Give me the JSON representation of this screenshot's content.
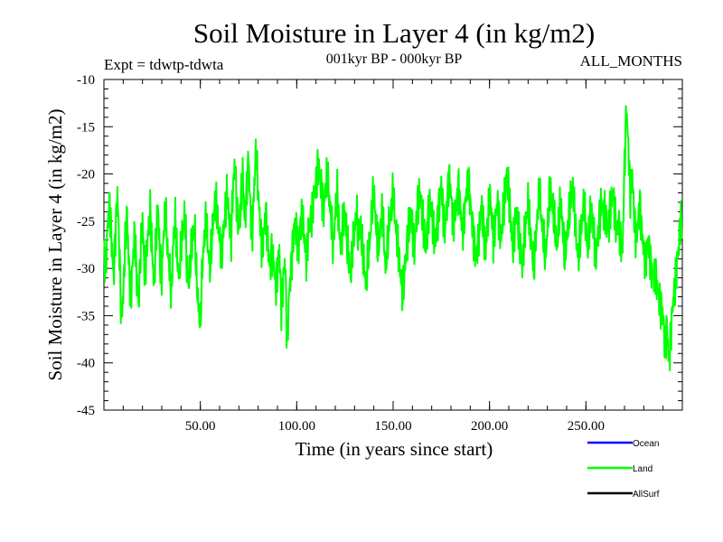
{
  "chart_data": {
    "type": "line",
    "title": "Soil Moisture in Layer 4 (in kg/m2)",
    "subtitle_left": "Expt = tdwtp-tdwta",
    "subtitle_center": "001kyr BP - 000kyr BP",
    "subtitle_right": "ALL_MONTHS",
    "xlabel": "Time (in years since start)",
    "ylabel": "Soil Moisture in Layer 4 (in kg/m2)",
    "xlim": [
      0,
      300
    ],
    "ylim": [
      -45,
      -10
    ],
    "x_ticks": [
      50,
      100,
      150,
      200,
      250
    ],
    "x_tick_labels": [
      "50.00",
      "100.00",
      "150.00",
      "200.00",
      "250.00"
    ],
    "y_ticks": [
      -10,
      -15,
      -20,
      -25,
      -30,
      -35,
      -40,
      -45
    ],
    "y_tick_labels": [
      "-10",
      "-15",
      "-20",
      "-25",
      "-30",
      "-35",
      "-40",
      "-45"
    ],
    "legend": {
      "position": "bottom-right"
    },
    "colors": {
      "Ocean": "#0000ff",
      "Land": "#00ff00",
      "AllSurf": "#000000"
    },
    "series": [
      {
        "name": "Ocean",
        "values": []
      },
      {
        "name": "Land",
        "x_start": 0,
        "x_step": 1,
        "values": [
          -28,
          -29.5,
          -25,
          -23,
          -27,
          -31,
          -26,
          -22,
          -28,
          -35,
          -33,
          -27,
          -24,
          -30,
          -33,
          -29,
          -26,
          -31,
          -34,
          -28,
          -25,
          -30,
          -29,
          -26,
          -24,
          -28,
          -32,
          -27,
          -23,
          -29,
          -31,
          -26,
          -24,
          -28,
          -30,
          -33,
          -27,
          -25,
          -29,
          -31,
          -28,
          -26,
          -24,
          -30,
          -32,
          -29,
          -27,
          -25,
          -31,
          -34,
          -36,
          -30,
          -27,
          -25,
          -28,
          -30,
          -27,
          -24,
          -23,
          -25,
          -27,
          -29,
          -26,
          -24,
          -22,
          -25,
          -27,
          -21,
          -19,
          -24,
          -26,
          -23,
          -20,
          -25,
          -22,
          -18,
          -24,
          -26,
          -21,
          -17,
          -22,
          -25,
          -28,
          -26,
          -24,
          -27,
          -30,
          -28,
          -29,
          -32,
          -30,
          -28,
          -34,
          -31,
          -29,
          -38,
          -33,
          -30,
          -27,
          -25,
          -26,
          -28,
          -25,
          -24,
          -27,
          -29,
          -26,
          -25,
          -24,
          -22,
          -21,
          -19,
          -20,
          -22,
          -24,
          -21,
          -20,
          -23,
          -25,
          -28,
          -24,
          -22,
          -26,
          -28,
          -25,
          -24,
          -27,
          -29,
          -31,
          -28,
          -26,
          -24,
          -27,
          -25,
          -28,
          -30,
          -32,
          -29,
          -27,
          -24,
          -22,
          -25,
          -28,
          -27,
          -24,
          -26,
          -30,
          -28,
          -25,
          -24,
          -22,
          -25,
          -27,
          -29,
          -31,
          -33,
          -30,
          -28,
          -26,
          -24,
          -26,
          -28,
          -25,
          -23,
          -22,
          -24,
          -26,
          -28,
          -25,
          -23,
          -24,
          -26,
          -27,
          -25,
          -23,
          -21,
          -24,
          -26,
          -23,
          -20,
          -22,
          -25,
          -24,
          -23,
          -21,
          -24,
          -26,
          -24,
          -22,
          -20,
          -23,
          -25,
          -27,
          -29,
          -27,
          -25,
          -23,
          -26,
          -28,
          -25,
          -22,
          -24,
          -27,
          -25,
          -23,
          -25,
          -27,
          -24,
          -22,
          -20,
          -22,
          -25,
          -28,
          -26,
          -24,
          -26,
          -28,
          -30,
          -27,
          -25,
          -23,
          -26,
          -28,
          -30,
          -27,
          -24,
          -22,
          -25,
          -27,
          -29,
          -26,
          -23,
          -22,
          -24,
          -26,
          -28,
          -25,
          -23,
          -26,
          -29,
          -27,
          -25,
          -23,
          -21,
          -24,
          -27,
          -29,
          -27,
          -25,
          -23,
          -26,
          -28,
          -25,
          -24,
          -26,
          -29,
          -27,
          -25,
          -23,
          -24,
          -24,
          -26,
          -25,
          -23,
          -22,
          -24,
          -26,
          -25,
          -27,
          -28,
          -19,
          -13,
          -17,
          -22,
          -20,
          -24,
          -27,
          -25,
          -23,
          -26,
          -28,
          -29,
          -27,
          -28,
          -30,
          -31,
          -30,
          -32,
          -33,
          -34,
          -35,
          -38,
          -36,
          -40,
          -37,
          -34,
          -32,
          -30,
          -28,
          -25
        ]
      },
      {
        "name": "AllSurf",
        "values": []
      }
    ]
  }
}
